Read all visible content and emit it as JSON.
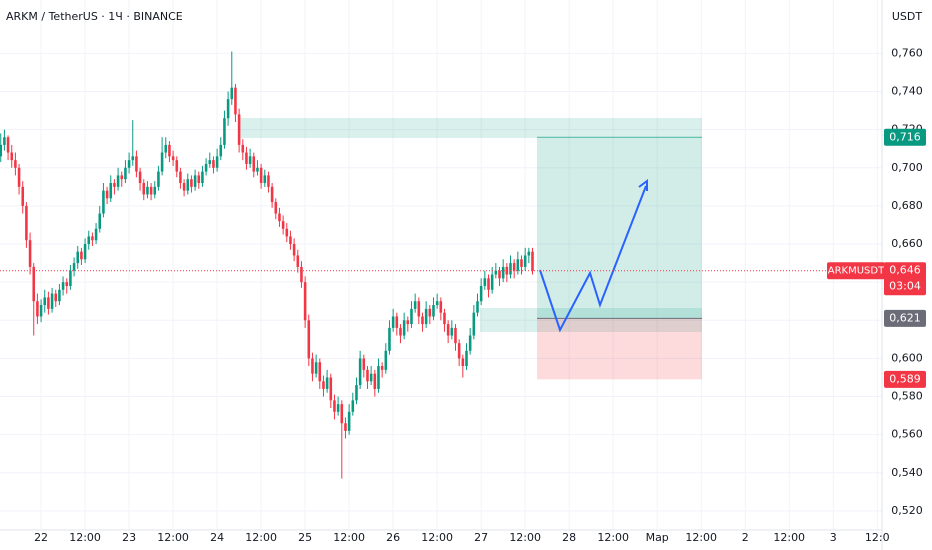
{
  "chart_data": {
    "type": "candlestick",
    "title": "ARKM / TetherUS · 1Ч · BINANCE",
    "currency": "USDT",
    "up_color": "#089981",
    "down_color": "#f23645",
    "grid": true,
    "ylim": [
      0.51,
      0.788
    ],
    "yticks": [
      {
        "value": 0.52,
        "label": "0,520"
      },
      {
        "value": 0.54,
        "label": "0,540"
      },
      {
        "value": 0.56,
        "label": "0,560"
      },
      {
        "value": 0.58,
        "label": "0,580"
      },
      {
        "value": 0.6,
        "label": "0,600"
      },
      {
        "value": 0.62,
        "label": "0,620"
      },
      {
        "value": 0.64,
        "label": "0,640"
      },
      {
        "value": 0.66,
        "label": "0,660"
      },
      {
        "value": 0.68,
        "label": "0,680"
      },
      {
        "value": 0.7,
        "label": "0,700"
      },
      {
        "value": 0.72,
        "label": "0,720"
      },
      {
        "value": 0.74,
        "label": "0,740"
      },
      {
        "value": 0.76,
        "label": "0,760"
      }
    ],
    "xlim": [
      -0.2,
      240.3
    ],
    "xticks": [
      {
        "value": 11,
        "label": "22"
      },
      {
        "value": 23,
        "label": "12:00"
      },
      {
        "value": 35,
        "label": "23"
      },
      {
        "value": 47,
        "label": "12:00"
      },
      {
        "value": 59,
        "label": "24"
      },
      {
        "value": 71,
        "label": "12:00"
      },
      {
        "value": 83,
        "label": "25"
      },
      {
        "value": 95,
        "label": "12:00"
      },
      {
        "value": 107,
        "label": "26"
      },
      {
        "value": 119,
        "label": "12:00"
      },
      {
        "value": 131,
        "label": "27"
      },
      {
        "value": 143,
        "label": "12:00"
      },
      {
        "value": 155,
        "label": "28"
      },
      {
        "value": 167,
        "label": "12:00"
      },
      {
        "value": 179,
        "label": "Мар"
      },
      {
        "value": 191,
        "label": "12:00"
      },
      {
        "value": 203,
        "label": "2"
      },
      {
        "value": 215,
        "label": "12:00"
      },
      {
        "value": 227,
        "label": "3"
      },
      {
        "value": 239,
        "label": "12:0"
      }
    ],
    "ohlc": [
      [
        0.706,
        0.718,
        0.703,
        0.712
      ],
      [
        0.712,
        0.72,
        0.709,
        0.716
      ],
      [
        0.716,
        0.717,
        0.704,
        0.708
      ],
      [
        0.708,
        0.712,
        0.7,
        0.704
      ],
      [
        0.704,
        0.708,
        0.696,
        0.7
      ],
      [
        0.7,
        0.702,
        0.686,
        0.69
      ],
      [
        0.69,
        0.693,
        0.676,
        0.68
      ],
      [
        0.68,
        0.682,
        0.658,
        0.662
      ],
      [
        0.662,
        0.666,
        0.644,
        0.648
      ],
      [
        0.648,
        0.65,
        0.612,
        0.63
      ],
      [
        0.63,
        0.634,
        0.618,
        0.622
      ],
      [
        0.622,
        0.631,
        0.619,
        0.628
      ],
      [
        0.628,
        0.636,
        0.624,
        0.632
      ],
      [
        0.632,
        0.635,
        0.623,
        0.626
      ],
      [
        0.626,
        0.637,
        0.624,
        0.634
      ],
      [
        0.634,
        0.636,
        0.627,
        0.63
      ],
      [
        0.63,
        0.639,
        0.628,
        0.636
      ],
      [
        0.636,
        0.643,
        0.633,
        0.64
      ],
      [
        0.64,
        0.642,
        0.634,
        0.638
      ],
      [
        0.638,
        0.649,
        0.636,
        0.646
      ],
      [
        0.646,
        0.653,
        0.643,
        0.65
      ],
      [
        0.65,
        0.659,
        0.647,
        0.656
      ],
      [
        0.656,
        0.658,
        0.649,
        0.652
      ],
      [
        0.652,
        0.663,
        0.65,
        0.66
      ],
      [
        0.66,
        0.667,
        0.657,
        0.664
      ],
      [
        0.664,
        0.666,
        0.659,
        0.662
      ],
      [
        0.662,
        0.671,
        0.66,
        0.668
      ],
      [
        0.668,
        0.68,
        0.666,
        0.676
      ],
      [
        0.676,
        0.692,
        0.674,
        0.688
      ],
      [
        0.688,
        0.69,
        0.681,
        0.684
      ],
      [
        0.684,
        0.696,
        0.682,
        0.692
      ],
      [
        0.692,
        0.694,
        0.686,
        0.69
      ],
      [
        0.69,
        0.7,
        0.688,
        0.696
      ],
      [
        0.696,
        0.698,
        0.69,
        0.694
      ],
      [
        0.694,
        0.704,
        0.692,
        0.7
      ],
      [
        0.7,
        0.708,
        0.697,
        0.704
      ],
      [
        0.704,
        0.725,
        0.701,
        0.706
      ],
      [
        0.706,
        0.709,
        0.695,
        0.698
      ],
      [
        0.698,
        0.7,
        0.688,
        0.692
      ],
      [
        0.692,
        0.694,
        0.683,
        0.686
      ],
      [
        0.686,
        0.693,
        0.684,
        0.69
      ],
      [
        0.69,
        0.692,
        0.683,
        0.686
      ],
      [
        0.686,
        0.693,
        0.684,
        0.69
      ],
      [
        0.69,
        0.701,
        0.688,
        0.698
      ],
      [
        0.698,
        0.716,
        0.696,
        0.708
      ],
      [
        0.708,
        0.716,
        0.705,
        0.712
      ],
      [
        0.712,
        0.714,
        0.703,
        0.706
      ],
      [
        0.706,
        0.709,
        0.701,
        0.704
      ],
      [
        0.704,
        0.706,
        0.695,
        0.698
      ],
      [
        0.698,
        0.7,
        0.689,
        0.692
      ],
      [
        0.692,
        0.694,
        0.685,
        0.688
      ],
      [
        0.688,
        0.697,
        0.686,
        0.694
      ],
      [
        0.694,
        0.696,
        0.687,
        0.69
      ],
      [
        0.69,
        0.699,
        0.688,
        0.696
      ],
      [
        0.696,
        0.698,
        0.689,
        0.692
      ],
      [
        0.692,
        0.701,
        0.69,
        0.698
      ],
      [
        0.698,
        0.705,
        0.696,
        0.702
      ],
      [
        0.702,
        0.708,
        0.7,
        0.704
      ],
      [
        0.704,
        0.706,
        0.697,
        0.7
      ],
      [
        0.7,
        0.71,
        0.698,
        0.706
      ],
      [
        0.706,
        0.716,
        0.704,
        0.712
      ],
      [
        0.712,
        0.73,
        0.71,
        0.726
      ],
      [
        0.726,
        0.74,
        0.722,
        0.736
      ],
      [
        0.736,
        0.761,
        0.733,
        0.742
      ],
      [
        0.742,
        0.744,
        0.724,
        0.728
      ],
      [
        0.728,
        0.731,
        0.708,
        0.712
      ],
      [
        0.712,
        0.715,
        0.704,
        0.708
      ],
      [
        0.708,
        0.711,
        0.699,
        0.702
      ],
      [
        0.702,
        0.71,
        0.7,
        0.706
      ],
      [
        0.706,
        0.708,
        0.695,
        0.698
      ],
      [
        0.698,
        0.704,
        0.696,
        0.7
      ],
      [
        0.7,
        0.702,
        0.689,
        0.692
      ],
      [
        0.692,
        0.699,
        0.69,
        0.696
      ],
      [
        0.696,
        0.698,
        0.687,
        0.69
      ],
      [
        0.69,
        0.692,
        0.679,
        0.682
      ],
      [
        0.682,
        0.684,
        0.673,
        0.676
      ],
      [
        0.676,
        0.679,
        0.669,
        0.672
      ],
      [
        0.672,
        0.675,
        0.665,
        0.668
      ],
      [
        0.668,
        0.671,
        0.661,
        0.664
      ],
      [
        0.664,
        0.667,
        0.657,
        0.66
      ],
      [
        0.66,
        0.663,
        0.651,
        0.654
      ],
      [
        0.654,
        0.657,
        0.645,
        0.648
      ],
      [
        0.648,
        0.651,
        0.637,
        0.64
      ],
      [
        0.64,
        0.643,
        0.616,
        0.62
      ],
      [
        0.62,
        0.623,
        0.596,
        0.6
      ],
      [
        0.6,
        0.603,
        0.588,
        0.592
      ],
      [
        0.592,
        0.602,
        0.59,
        0.598
      ],
      [
        0.598,
        0.6,
        0.584,
        0.588
      ],
      [
        0.588,
        0.591,
        0.58,
        0.584
      ],
      [
        0.584,
        0.594,
        0.582,
        0.59
      ],
      [
        0.59,
        0.592,
        0.574,
        0.578
      ],
      [
        0.578,
        0.581,
        0.568,
        0.572
      ],
      [
        0.572,
        0.58,
        0.57,
        0.576
      ],
      [
        0.576,
        0.578,
        0.537,
        0.566
      ],
      [
        0.566,
        0.569,
        0.558,
        0.562
      ],
      [
        0.562,
        0.576,
        0.56,
        0.572
      ],
      [
        0.572,
        0.582,
        0.57,
        0.578
      ],
      [
        0.578,
        0.59,
        0.576,
        0.586
      ],
      [
        0.586,
        0.604,
        0.584,
        0.6
      ],
      [
        0.6,
        0.602,
        0.59,
        0.594
      ],
      [
        0.594,
        0.596,
        0.584,
        0.588
      ],
      [
        0.588,
        0.596,
        0.586,
        0.592
      ],
      [
        0.592,
        0.594,
        0.58,
        0.584
      ],
      [
        0.584,
        0.6,
        0.582,
        0.596
      ],
      [
        0.596,
        0.598,
        0.59,
        0.594
      ],
      [
        0.594,
        0.608,
        0.592,
        0.604
      ],
      [
        0.604,
        0.62,
        0.602,
        0.616
      ],
      [
        0.616,
        0.626,
        0.614,
        0.622
      ],
      [
        0.622,
        0.624,
        0.612,
        0.616
      ],
      [
        0.616,
        0.618,
        0.608,
        0.612
      ],
      [
        0.612,
        0.624,
        0.61,
        0.62
      ],
      [
        0.62,
        0.622,
        0.614,
        0.618
      ],
      [
        0.618,
        0.63,
        0.616,
        0.626
      ],
      [
        0.626,
        0.634,
        0.624,
        0.63
      ],
      [
        0.63,
        0.632,
        0.618,
        0.622
      ],
      [
        0.622,
        0.624,
        0.614,
        0.618
      ],
      [
        0.618,
        0.63,
        0.616,
        0.626
      ],
      [
        0.626,
        0.628,
        0.618,
        0.622
      ],
      [
        0.622,
        0.632,
        0.62,
        0.628
      ],
      [
        0.628,
        0.634,
        0.626,
        0.63
      ],
      [
        0.63,
        0.632,
        0.62,
        0.624
      ],
      [
        0.624,
        0.626,
        0.614,
        0.618
      ],
      [
        0.618,
        0.62,
        0.608,
        0.612
      ],
      [
        0.612,
        0.62,
        0.61,
        0.616
      ],
      [
        0.616,
        0.618,
        0.604,
        0.608
      ],
      [
        0.608,
        0.61,
        0.596,
        0.6
      ],
      [
        0.6,
        0.602,
        0.59,
        0.596
      ],
      [
        0.596,
        0.608,
        0.594,
        0.604
      ],
      [
        0.604,
        0.616,
        0.602,
        0.612
      ],
      [
        0.612,
        0.628,
        0.61,
        0.624
      ],
      [
        0.624,
        0.634,
        0.622,
        0.63
      ],
      [
        0.63,
        0.642,
        0.628,
        0.638
      ],
      [
        0.638,
        0.646,
        0.636,
        0.642
      ],
      [
        0.642,
        0.644,
        0.632,
        0.636
      ],
      [
        0.636,
        0.648,
        0.634,
        0.644
      ],
      [
        0.644,
        0.65,
        0.642,
        0.646
      ],
      [
        0.646,
        0.648,
        0.638,
        0.642
      ],
      [
        0.642,
        0.652,
        0.64,
        0.648
      ],
      [
        0.648,
        0.65,
        0.64,
        0.644
      ],
      [
        0.644,
        0.654,
        0.642,
        0.65
      ],
      [
        0.65,
        0.652,
        0.642,
        0.646
      ],
      [
        0.646,
        0.656,
        0.644,
        0.652
      ],
      [
        0.652,
        0.654,
        0.644,
        0.648
      ],
      [
        0.648,
        0.658,
        0.646,
        0.654
      ],
      [
        0.654,
        0.658,
        0.65,
        0.656
      ],
      [
        0.656,
        0.658,
        0.644,
        0.646
      ]
    ],
    "last_price": {
      "symbol": "ARKMUSDT",
      "value": 0.646,
      "label": "0,646",
      "countdown": "03:04",
      "color": "#f23645"
    },
    "position": {
      "target": {
        "value": 0.716,
        "label": "0,716",
        "color": "#089981"
      },
      "entry": {
        "value": 0.621,
        "label": "0,621",
        "color": "#6a6d78"
      },
      "stop": {
        "value": 0.589,
        "label": "0,589",
        "color": "#f23645"
      }
    }
  }
}
